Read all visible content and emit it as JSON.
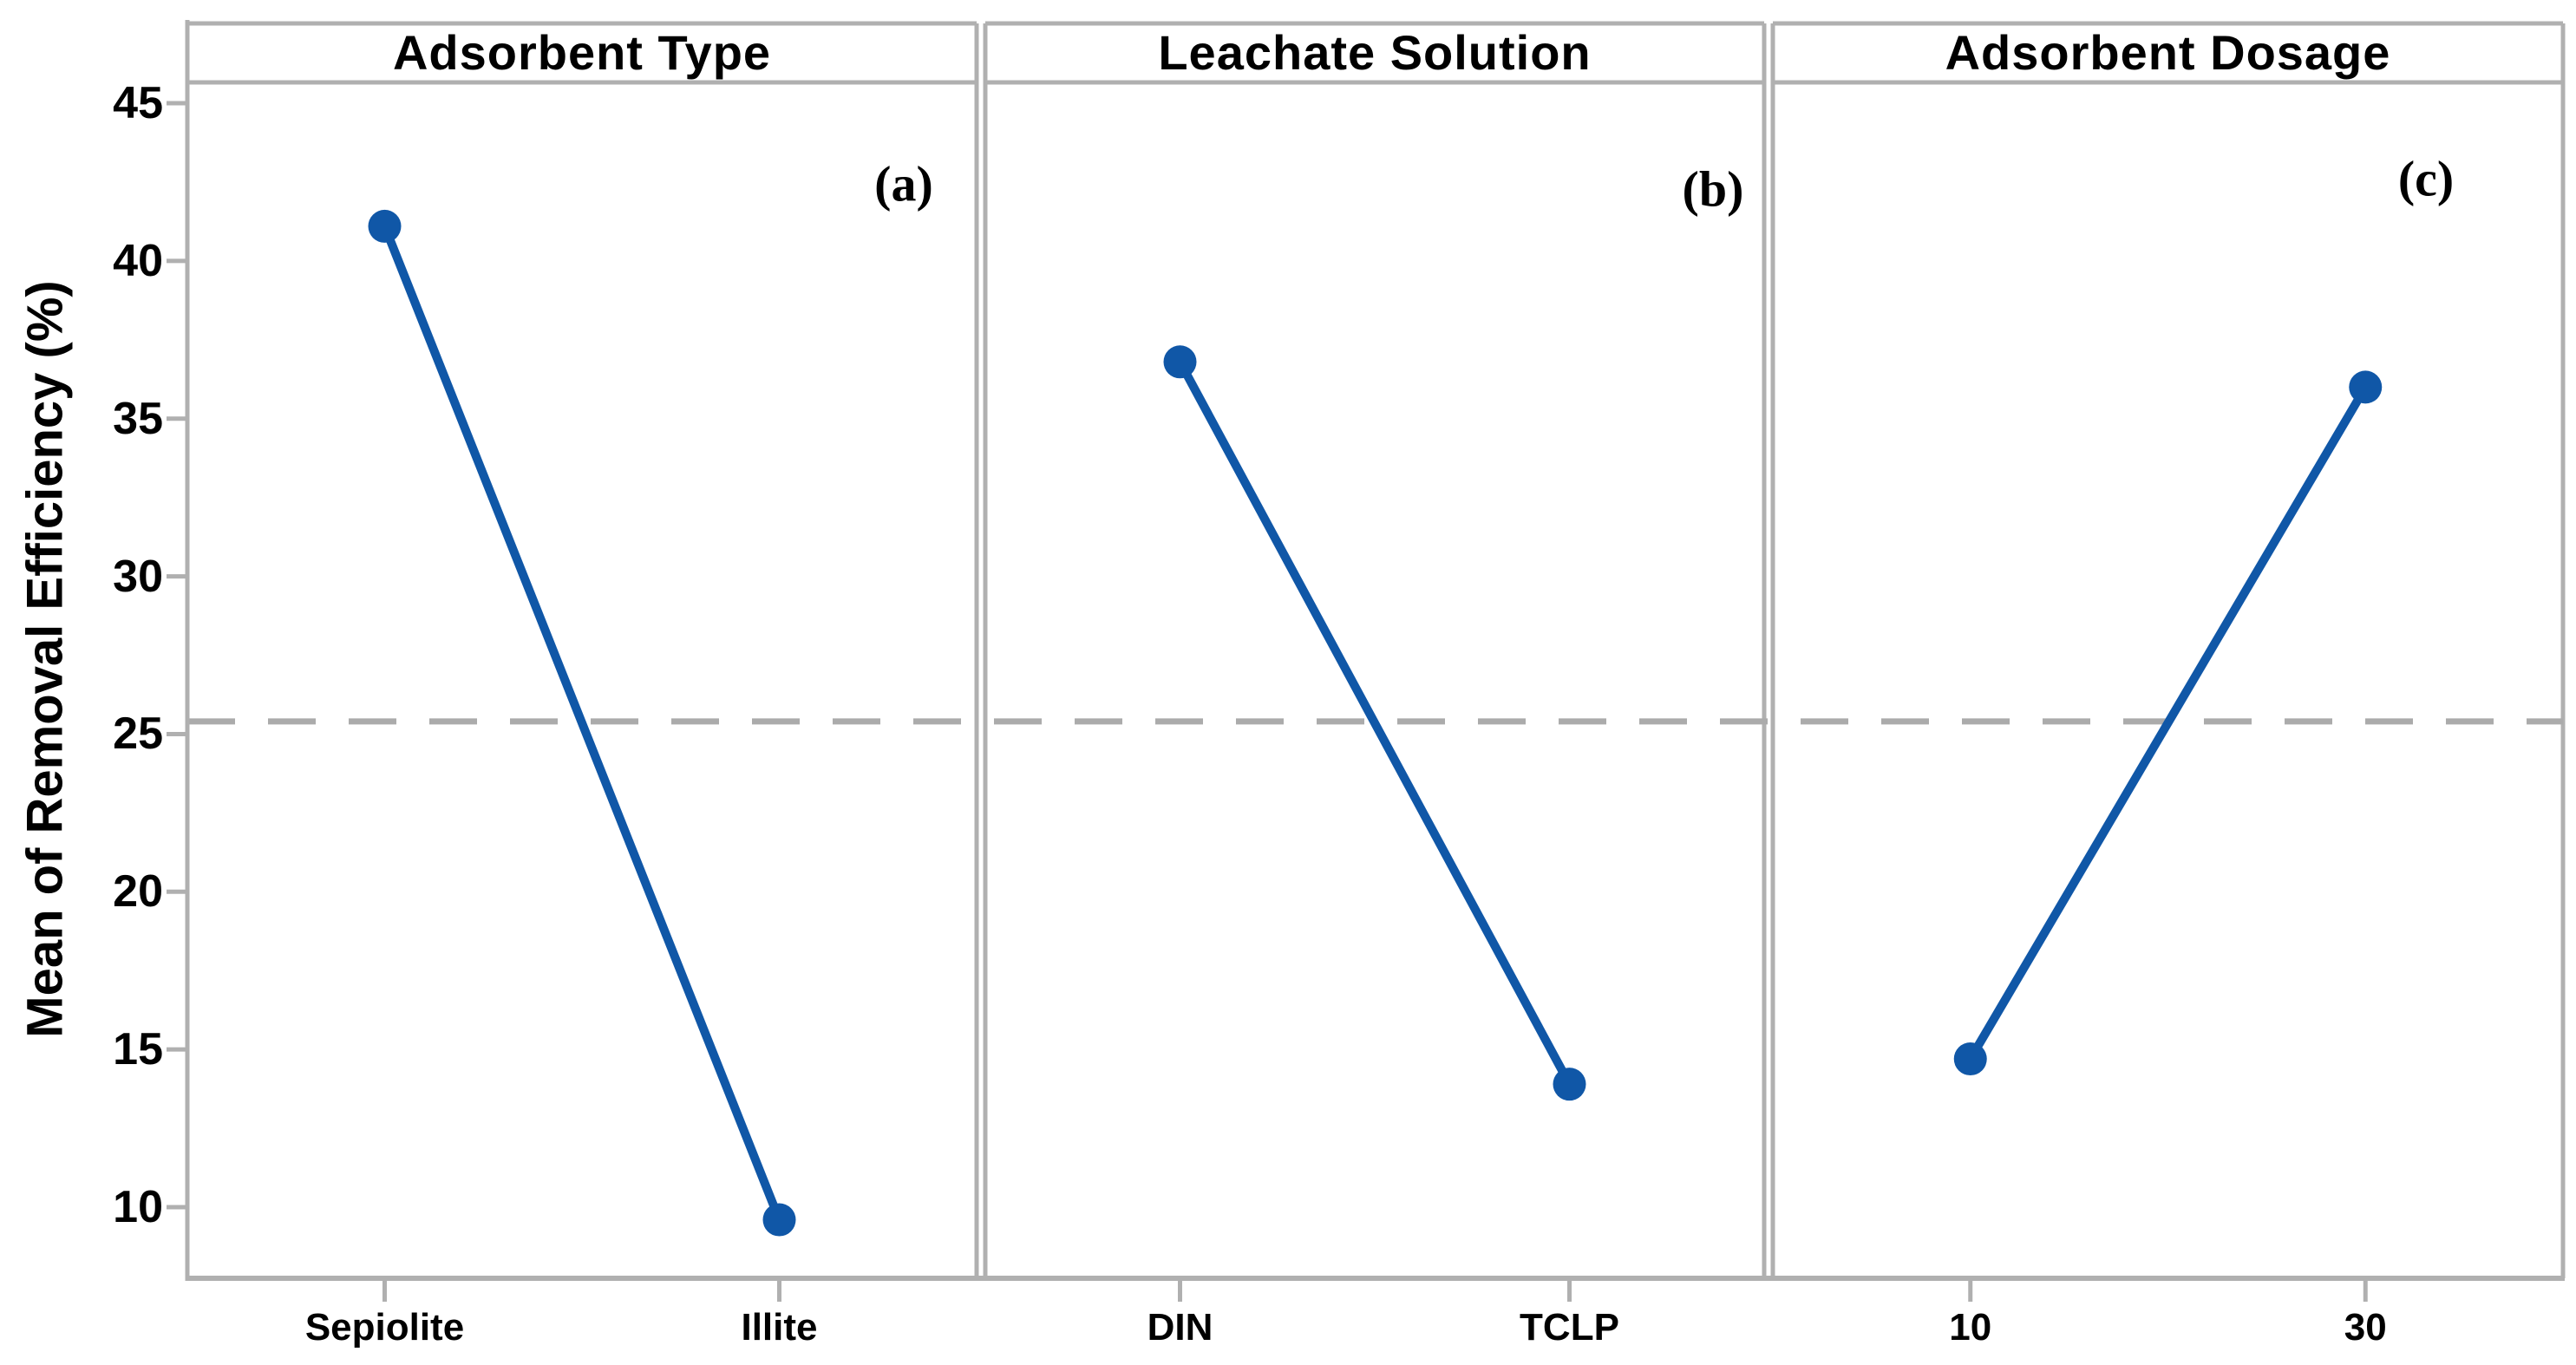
{
  "figure": {
    "background": "#FFFFFF",
    "accent_blue": "#1057A7",
    "frame_gray": "#B0B0B0",
    "dash_gray": "#ABABAB",
    "text_color": "#000000"
  },
  "chart_data": {
    "type": "line",
    "description": "Main effects plot with three panels sharing one y-axis",
    "ylabel": "Mean of Removal Efficiency (%)",
    "ylim": [
      7.7,
      45.7
    ],
    "yticks": [
      10,
      15,
      20,
      25,
      30,
      35,
      40,
      45
    ],
    "reference_line": 25.4,
    "grid": false,
    "legend": "none",
    "panels": [
      {
        "title": "Adsorbent Type",
        "tag": "(a)",
        "categories": [
          "Sepiolite",
          "Illite"
        ],
        "values": [
          41.1,
          9.6
        ]
      },
      {
        "title": "Leachate Solution",
        "tag": "(b)",
        "categories": [
          "DIN",
          "TCLP"
        ],
        "values": [
          36.8,
          13.9
        ]
      },
      {
        "title": "Adsorbent Dosage",
        "tag": "(c)",
        "categories": [
          "10",
          "30"
        ],
        "values": [
          14.7,
          36.0
        ]
      }
    ]
  }
}
